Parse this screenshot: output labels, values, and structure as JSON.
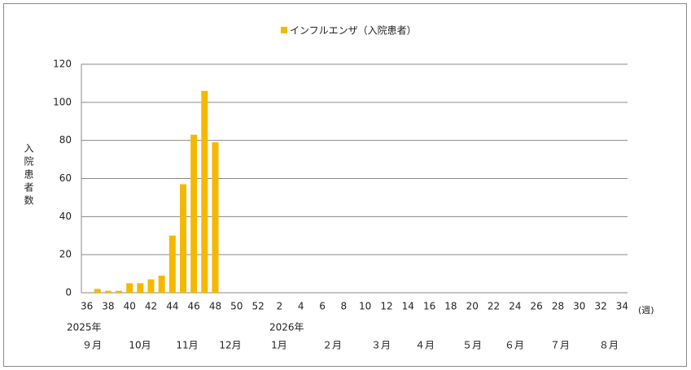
{
  "chart_data": {
    "type": "bar",
    "series": [
      {
        "name": "インフルエンザ（入院患者）",
        "color": "#f5b800",
        "values": [
          null,
          2,
          1,
          1,
          5,
          5,
          7,
          9,
          30,
          57,
          83,
          106,
          79,
          null,
          null,
          null,
          null,
          null,
          null,
          null,
          null,
          null,
          null,
          null,
          null,
          null,
          null,
          null,
          null,
          null,
          null,
          null,
          null,
          null,
          null,
          null,
          null,
          null,
          null,
          null,
          null,
          null,
          null,
          null,
          null,
          null,
          null,
          null,
          null,
          null,
          null
        ]
      }
    ],
    "categories": [
      "36",
      null,
      "38",
      null,
      "40",
      null,
      "42",
      null,
      "44",
      null,
      "46",
      null,
      "48",
      null,
      "50",
      null,
      "52",
      null,
      "2",
      null,
      "4",
      null,
      "6",
      null,
      "8",
      null,
      "10",
      null,
      "12",
      null,
      "14",
      null,
      "16",
      null,
      "18",
      null,
      "20",
      null,
      "22",
      null,
      "24",
      null,
      "26",
      null,
      "28",
      null,
      "30",
      null,
      "32",
      null,
      "34"
    ],
    "y_label": "入院患者数",
    "x_label": "(週)",
    "year_labels": [
      "2025年",
      "2026年"
    ],
    "month_labels": [
      "９月",
      "10月",
      "11月",
      "12月",
      "1月",
      "２月",
      "３月",
      "４月",
      "５月",
      "６月",
      "７月",
      "８月"
    ],
    "ylim": [
      0,
      120
    ],
    "yticks": [
      0,
      20,
      40,
      60,
      80,
      100,
      120
    ],
    "grid": true
  }
}
